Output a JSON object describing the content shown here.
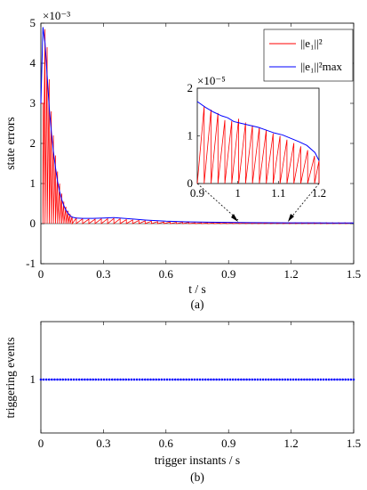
{
  "chart_data": [
    {
      "type": "line",
      "xlabel": "t / s",
      "ylabel": "state errors",
      "caption": "(a)",
      "y_multiplier": "×10⁻³",
      "xlim": [
        0,
        1.5
      ],
      "ylim": [
        -1,
        5
      ],
      "xticks": [
        "0",
        "0.3",
        "0.6",
        "0.9",
        "1.2",
        "1.5"
      ],
      "yticks": [
        "-1",
        "0",
        "1",
        "2",
        "3",
        "4",
        "5"
      ],
      "legend_position": "top-right",
      "series": [
        {
          "name": "||e₁||²",
          "color": "#ff0000",
          "description": "sawtooth reset to 0 at each trigger instant",
          "peaks_x": [
            0.01,
            0.02,
            0.03,
            0.04,
            0.05,
            0.06,
            0.07,
            0.08,
            0.09,
            0.1,
            0.11,
            0.12,
            0.13,
            0.14,
            0.15,
            0.17,
            0.2,
            0.23,
            0.26,
            0.29,
            0.32,
            0.35,
            0.38,
            0.41,
            0.44,
            0.47,
            0.5,
            0.53,
            0.56,
            0.59,
            0.62,
            0.65,
            0.68,
            0.71,
            0.74,
            0.77,
            0.8,
            0.83,
            0.86,
            0.89,
            0.92,
            0.95,
            0.98,
            1.01,
            1.04,
            1.07,
            1.1,
            1.13,
            1.16,
            1.19,
            1.22,
            1.25,
            1.28,
            1.31,
            1.34,
            1.37,
            1.4,
            1.43,
            1.46,
            1.49
          ],
          "peaks_y": [
            3.0,
            4.85,
            4.4,
            3.6,
            2.8,
            2.2,
            1.7,
            1.3,
            1.0,
            0.75,
            0.55,
            0.42,
            0.32,
            0.24,
            0.18,
            0.14,
            0.12,
            0.11,
            0.11,
            0.12,
            0.12,
            0.13,
            0.12,
            0.1,
            0.09,
            0.08,
            0.07,
            0.06,
            0.05,
            0.04,
            0.04,
            0.03,
            0.03,
            0.03,
            0.02,
            0.02,
            0.02,
            0.02,
            0.02,
            0.02,
            0.02,
            0.02,
            0.02,
            0.02,
            0.02,
            0.02,
            0.02,
            0.02,
            0.02,
            0.02,
            0.02,
            0.02,
            0.02,
            0.02,
            0.02,
            0.02,
            0.02,
            0.02,
            0.02,
            0.02
          ]
        },
        {
          "name": "||e₁||²max",
          "color": "#0000ff",
          "x": [
            0.0,
            0.01,
            0.02,
            0.03,
            0.04,
            0.05,
            0.06,
            0.07,
            0.08,
            0.09,
            0.1,
            0.11,
            0.12,
            0.13,
            0.14,
            0.15,
            0.17,
            0.2,
            0.25,
            0.3,
            0.35,
            0.4,
            0.45,
            0.5,
            0.6,
            0.7,
            0.8,
            0.9,
            1.0,
            1.1,
            1.2,
            1.3,
            1.4,
            1.5
          ],
          "y": [
            3.0,
            4.9,
            4.5,
            3.7,
            2.9,
            2.3,
            1.8,
            1.4,
            1.05,
            0.8,
            0.6,
            0.45,
            0.34,
            0.26,
            0.2,
            0.16,
            0.14,
            0.13,
            0.13,
            0.14,
            0.15,
            0.13,
            0.11,
            0.09,
            0.06,
            0.045,
            0.035,
            0.03,
            0.025,
            0.022,
            0.02,
            0.02,
            0.018,
            0.018
          ]
        }
      ]
    },
    {
      "type": "line",
      "subtype": "inset",
      "y_multiplier": "×10⁻⁵",
      "xlim": [
        0.9,
        1.2
      ],
      "ylim": [
        0,
        2
      ],
      "xticks": [
        "0.9",
        "1",
        "1.1",
        "1.2"
      ],
      "yticks": [
        "0",
        "1",
        "2"
      ],
      "trigger_x": [
        0.9,
        0.917,
        0.934,
        0.951,
        0.968,
        0.985,
        1.002,
        1.019,
        1.036,
        1.053,
        1.07,
        1.087,
        1.104,
        1.121,
        1.138,
        1.155,
        1.172,
        1.189
      ],
      "series": [
        {
          "name": "||e₁||²",
          "color": "#ff0000",
          "peaks_y": [
            1.62,
            1.55,
            1.48,
            1.33,
            1.31,
            1.36,
            1.28,
            1.22,
            1.18,
            1.12,
            1.05,
            1.0,
            0.92,
            0.85,
            0.78,
            0.7,
            0.58,
            0.48
          ]
        },
        {
          "name": "||e₁||²max",
          "color": "#0000ff",
          "x": [
            0.9,
            0.92,
            0.94,
            0.96,
            0.975,
            0.99,
            1.01,
            1.03,
            1.05,
            1.07,
            1.09,
            1.11,
            1.13,
            1.15,
            1.17,
            1.19,
            1.2
          ],
          "y": [
            1.72,
            1.6,
            1.5,
            1.42,
            1.38,
            1.3,
            1.26,
            1.22,
            1.18,
            1.12,
            1.06,
            1.02,
            0.95,
            0.88,
            0.8,
            0.65,
            0.48
          ]
        }
      ]
    },
    {
      "type": "scatter",
      "xlabel": "trigger instants / s",
      "ylabel": "triggering events",
      "caption": "(b)",
      "xlim": [
        0,
        1.5
      ],
      "xticks": [
        "0",
        "0.3",
        "0.6",
        "0.9",
        "1.2",
        "1.5"
      ],
      "yticks": [
        "1"
      ],
      "y_value": 1,
      "color": "#0000ff",
      "point_count": 115
    }
  ]
}
